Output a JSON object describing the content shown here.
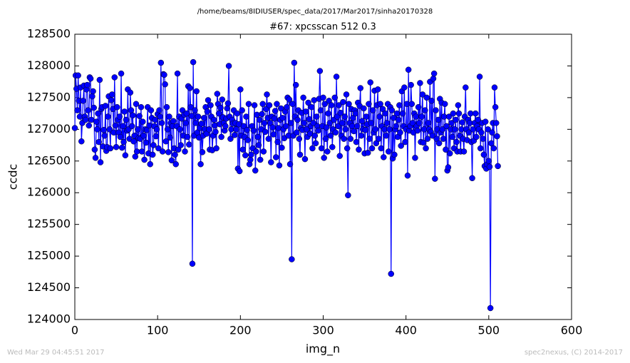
{
  "chart_data": {
    "type": "line",
    "subtitle": "/home/beams/8IDIUSER/spec_data/2017/Mar2017/sinha20170328",
    "title": "#67: xpcsscan 512 0.3",
    "x_label": "img_n",
    "y_label": "ccdc",
    "timestamp": "Wed Mar 29 04:45:51 2017",
    "credit": "spec2nexus, (C) 2014-2017",
    "color": "#0000ff",
    "xlim": [
      0,
      600
    ],
    "xticks": [
      0,
      100,
      200,
      300,
      400,
      500,
      600
    ],
    "ylim": [
      124000,
      128500
    ],
    "yticks": [
      124000,
      124500,
      125000,
      125500,
      126000,
      126500,
      127000,
      127500,
      128000,
      128500
    ],
    "x": [
      0,
      1,
      2,
      3,
      4,
      5,
      6,
      7,
      8,
      9,
      10,
      11,
      12,
      13,
      14,
      15,
      16,
      17,
      18,
      19,
      20,
      21,
      22,
      23,
      24,
      25,
      26,
      27,
      28,
      29,
      30,
      31,
      32,
      33,
      34,
      35,
      36,
      37,
      38,
      39,
      40,
      41,
      42,
      43,
      44,
      45,
      46,
      47,
      48,
      49,
      50,
      51,
      52,
      53,
      54,
      55,
      56,
      57,
      58,
      59,
      60,
      61,
      62,
      63,
      64,
      65,
      66,
      67,
      68,
      69,
      70,
      71,
      72,
      73,
      74,
      75,
      76,
      77,
      78,
      79,
      80,
      81,
      82,
      83,
      84,
      85,
      86,
      87,
      88,
      89,
      90,
      91,
      92,
      93,
      94,
      95,
      96,
      97,
      98,
      99,
      100,
      101,
      102,
      103,
      104,
      105,
      106,
      107,
      108,
      109,
      110,
      111,
      112,
      113,
      114,
      115,
      116,
      117,
      118,
      119,
      120,
      121,
      122,
      123,
      124,
      125,
      126,
      127,
      128,
      129,
      130,
      131,
      132,
      133,
      134,
      135,
      136,
      137,
      138,
      139,
      140,
      141,
      142,
      143,
      144,
      145,
      146,
      147,
      148,
      149,
      150,
      151,
      152,
      153,
      154,
      155,
      156,
      157,
      158,
      159,
      160,
      161,
      162,
      163,
      164,
      165,
      166,
      167,
      168,
      169,
      170,
      171,
      172,
      173,
      174,
      175,
      176,
      177,
      178,
      179,
      180,
      181,
      182,
      183,
      184,
      185,
      186,
      187,
      188,
      189,
      190,
      191,
      192,
      193,
      194,
      195,
      196,
      197,
      198,
      199,
      200,
      201,
      202,
      203,
      204,
      205,
      206,
      207,
      208,
      209,
      210,
      211,
      212,
      213,
      214,
      215,
      216,
      217,
      218,
      219,
      220,
      221,
      222,
      223,
      224,
      225,
      226,
      227,
      228,
      229,
      230,
      231,
      232,
      233,
      234,
      235,
      236,
      237,
      238,
      239,
      240,
      241,
      242,
      243,
      244,
      245,
      246,
      247,
      248,
      249,
      250,
      251,
      252,
      253,
      254,
      255,
      256,
      257,
      258,
      259,
      260,
      261,
      262,
      263,
      264,
      265,
      266,
      267,
      268,
      269,
      270,
      271,
      272,
      273,
      274,
      275,
      276,
      277,
      278,
      279,
      280,
      281,
      282,
      283,
      284,
      285,
      286,
      287,
      288,
      289,
      290,
      291,
      292,
      293,
      294,
      295,
      296,
      297,
      298,
      299,
      300,
      301,
      302,
      303,
      304,
      305,
      306,
      307,
      308,
      309,
      310,
      311,
      312,
      313,
      314,
      315,
      316,
      317,
      318,
      319,
      320,
      321,
      322,
      323,
      324,
      325,
      326,
      327,
      328,
      329,
      330,
      331,
      332,
      333,
      334,
      335,
      336,
      337,
      338,
      339,
      340,
      341,
      342,
      343,
      344,
      345,
      346,
      347,
      348,
      349,
      350,
      351,
      352,
      353,
      354,
      355,
      356,
      357,
      358,
      359,
      360,
      361,
      362,
      363,
      364,
      365,
      366,
      367,
      368,
      369,
      370,
      371,
      372,
      373,
      374,
      375,
      376,
      377,
      378,
      379,
      380,
      381,
      382,
      383,
      384,
      385,
      386,
      387,
      388,
      389,
      390,
      391,
      392,
      393,
      394,
      395,
      396,
      397,
      398,
      399,
      400,
      401,
      402,
      403,
      404,
      405,
      406,
      407,
      408,
      409,
      410,
      411,
      412,
      413,
      414,
      415,
      416,
      417,
      418,
      419,
      420,
      421,
      422,
      423,
      424,
      425,
      426,
      427,
      428,
      429,
      430,
      431,
      432,
      433,
      434,
      435,
      436,
      437,
      438,
      439,
      440,
      441,
      442,
      443,
      444,
      445,
      446,
      447,
      448,
      449,
      450,
      451,
      452,
      453,
      454,
      455,
      456,
      457,
      458,
      459,
      460,
      461,
      462,
      463,
      464,
      465,
      466,
      467,
      468,
      469,
      470,
      471,
      472,
      473,
      474,
      475,
      476,
      477,
      478,
      479,
      480,
      481,
      482,
      483,
      484,
      485,
      486,
      487,
      488,
      489,
      490,
      491,
      492,
      493,
      494,
      495,
      496,
      497,
      498,
      499,
      500,
      501,
      502,
      503,
      504,
      505,
      506,
      507,
      508,
      509,
      510,
      511
    ],
    "values": [
      127020,
      127850,
      127640,
      127300,
      127850,
      127450,
      127200,
      127660,
      126810,
      127100,
      127450,
      127690,
      127200,
      127150,
      127630,
      127700,
      127300,
      127060,
      127820,
      127800,
      127150,
      127520,
      127600,
      127340,
      126680,
      126550,
      127120,
      127000,
      127250,
      126800,
      127780,
      126480,
      127320,
      127350,
      126730,
      126990,
      126900,
      127370,
      126660,
      126720,
      127200,
      127520,
      127000,
      126700,
      127460,
      127550,
      127320,
      126950,
      127820,
      127060,
      126720,
      127350,
      127150,
      126950,
      127200,
      126880,
      127880,
      126710,
      127050,
      126800,
      127280,
      126590,
      127150,
      126980,
      127630,
      127000,
      126850,
      127580,
      127300,
      127050,
      127220,
      126810,
      126900,
      126570,
      127400,
      126650,
      127000,
      126860,
      127210,
      126850,
      127350,
      126650,
      127120,
      126900,
      126520,
      127000,
      126790,
      126990,
      127350,
      126620,
      127060,
      126450,
      127300,
      127180,
      126600,
      126750,
      127050,
      127150,
      126890,
      127000,
      127240,
      126700,
      127300,
      127200,
      128050,
      127100,
      126650,
      127870,
      127860,
      127710,
      126810,
      127350,
      127000,
      126640,
      127200,
      126870,
      127100,
      126510,
      127050,
      127130,
      126700,
      126600,
      126450,
      127050,
      127880,
      126680,
      127200,
      127000,
      126750,
      127170,
      127300,
      126900,
      127230,
      126650,
      127100,
      127250,
      126880,
      127680,
      126760,
      127650,
      127350,
      127210,
      124880,
      128060,
      126900,
      127300,
      127100,
      127600,
      126950,
      127200,
      126870,
      127020,
      126450,
      127090,
      126640,
      126900,
      127180,
      127000,
      127350,
      126930,
      127280,
      127460,
      127000,
      126680,
      127380,
      127200,
      126670,
      126900,
      127150,
      127060,
      126960,
      126700,
      127560,
      127400,
      127250,
      127080,
      127340,
      126880,
      127470,
      127190,
      127100,
      126980,
      127050,
      127170,
      127330,
      127410,
      128000,
      127200,
      126850,
      127000,
      127150,
      127090,
      127300,
      126910,
      127100,
      127000,
      127250,
      126380,
      127080,
      126340,
      127630,
      126900,
      127300,
      126680,
      127050,
      126880,
      126590,
      127200,
      126990,
      126830,
      127400,
      126450,
      126520,
      126600,
      127050,
      126700,
      126980,
      127380,
      126350,
      126650,
      127230,
      126880,
      126750,
      127150,
      126520,
      127000,
      127240,
      127400,
      126650,
      127100,
      126960,
      127320,
      127550,
      127180,
      126850,
      127380,
      127100,
      126480,
      127200,
      127030,
      126920,
      127170,
      127290,
      126560,
      127400,
      126800,
      127020,
      126430,
      127150,
      127330,
      126710,
      127180,
      127000,
      126860,
      127280,
      127050,
      127350,
      127500,
      126900,
      127470,
      126450,
      127100,
      124950,
      127400,
      126900,
      128050,
      127200,
      127700,
      126950,
      127150,
      127300,
      126850,
      126600,
      127020,
      127260,
      126990,
      127500,
      127100,
      126530,
      127280,
      127000,
      126880,
      127420,
      127160,
      126930,
      127050,
      127350,
      126700,
      127100,
      127460,
      126900,
      126780,
      127200,
      127050,
      126980,
      127480,
      127920,
      127300,
      126700,
      127050,
      127500,
      126550,
      127400,
      126850,
      127030,
      126650,
      127250,
      127450,
      127100,
      126900,
      127380,
      126720,
      127000,
      127150,
      127500,
      126950,
      127830,
      127200,
      127050,
      127380,
      126580,
      127260,
      126900,
      127100,
      127430,
      126850,
      127200,
      127000,
      127550,
      126700,
      125960,
      127400,
      127100,
      126850,
      127320,
      127050,
      127180,
      126970,
      127300,
      127250,
      126800,
      127050,
      127420,
      126680,
      127370,
      127650,
      126900,
      127130,
      127000,
      127330,
      126620,
      126990,
      127200,
      127080,
      126630,
      127400,
      126850,
      127740,
      127100,
      126700,
      127300,
      126950,
      127610,
      127000,
      126780,
      127380,
      127630,
      126850,
      127200,
      127400,
      126700,
      127050,
      127320,
      126560,
      127000,
      127250,
      126900,
      127100,
      127400,
      126650,
      127000,
      127350,
      124720,
      127300,
      126540,
      127180,
      126600,
      127000,
      127050,
      127250,
      126880,
      127150,
      127380,
      126950,
      126740,
      127600,
      127250,
      127050,
      127660,
      126800,
      127000,
      127400,
      126270,
      127940,
      126980,
      127050,
      127700,
      127400,
      127100,
      126950,
      127250,
      126550,
      127200,
      127050,
      126980,
      127350,
      127100,
      127730,
      126800,
      127200,
      127550,
      126790,
      127000,
      127300,
      126700,
      127500,
      126850,
      127100,
      127000,
      127750,
      126960,
      127450,
      126900,
      127800,
      127880,
      126220,
      127300,
      126850,
      127000,
      127150,
      126780,
      127480,
      126950,
      127420,
      127000,
      126850,
      127200,
      127400,
      126680,
      127050,
      126350,
      126400,
      127200,
      126620,
      127000,
      127100,
      126880,
      127250,
      126700,
      127000,
      127150,
      126800,
      126650,
      127380,
      127250,
      126900,
      126650,
      127000,
      127110,
      126850,
      126650,
      127200,
      127660,
      127000,
      126830,
      127150,
      126950,
      127100,
      127250,
      126800,
      126230,
      127000,
      126820,
      127100,
      127250,
      126880,
      127050,
      127150,
      127000,
      127830,
      126700,
      126950,
      127100,
      126850,
      126600,
      126420,
      127120,
      126380,
      126450,
      127000,
      126500,
      126410,
      124180,
      126780,
      126950,
      127100,
      126700,
      127660,
      127350,
      127100,
      126890,
      126420
    ]
  }
}
